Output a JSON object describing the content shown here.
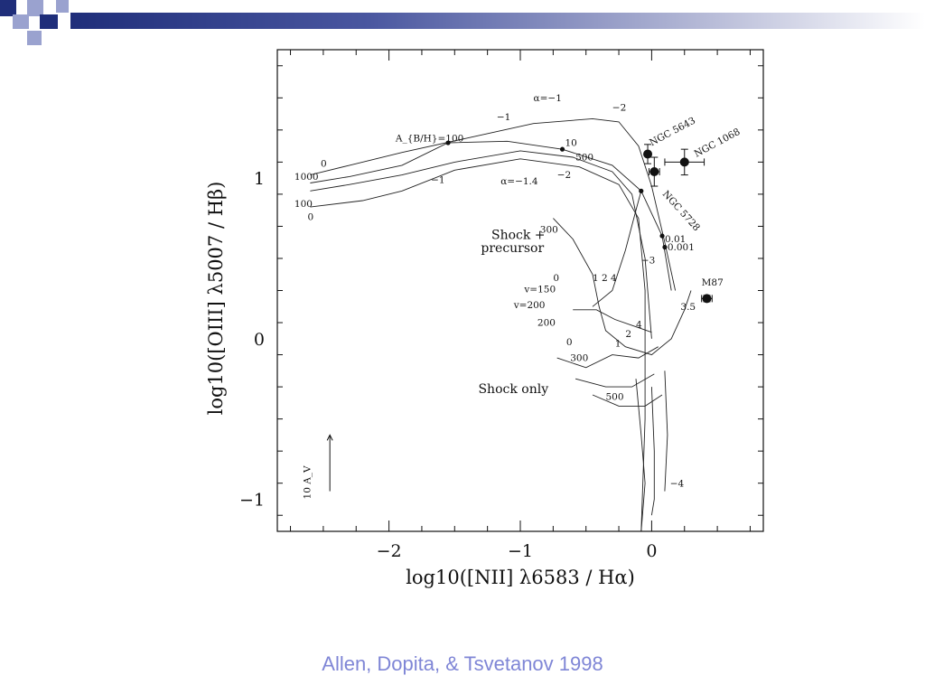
{
  "caption": "Allen, Dopita, & Tsvetanov 1998",
  "colors": {
    "banner_dark": "#1f2e7a",
    "banner_mid": "#4a57a0",
    "banner_light": "#9aa2cf",
    "caption": "#7f86d6",
    "ink": "#111111"
  },
  "chart_data": {
    "type": "scatter",
    "title": "",
    "xlabel": "log10([NII] λ6583 / Hα)",
    "ylabel": "log10([OIII] λ5007 / Hβ)",
    "xlim": [
      -2.85,
      0.85
    ],
    "ylim": [
      -1.2,
      1.8
    ],
    "x_ticks": [
      -2,
      -1,
      0
    ],
    "y_ticks": [
      -1,
      0,
      1
    ],
    "x_tick_labels": [
      "−2",
      "−1",
      "0"
    ],
    "y_tick_labels": [
      "−1",
      "0",
      "1"
    ],
    "grid": false,
    "observations": [
      {
        "name": "NGC 5643",
        "x": -0.03,
        "y": 1.15,
        "xerr": 0,
        "yerr": 0.06
      },
      {
        "name": "NGC 1068",
        "x": 0.25,
        "y": 1.1,
        "xerr": 0.15,
        "yerr": 0.08
      },
      {
        "name": "NGC 5728",
        "x": 0.02,
        "y": 1.04,
        "xerr": 0.04,
        "yerr": 0.09
      },
      {
        "name": "M87",
        "x": 0.42,
        "y": 0.25,
        "xerr": 0.04,
        "yerr": 0.02
      }
    ],
    "model_points": [
      {
        "x": -1.55,
        "y": 1.22
      },
      {
        "x": -0.68,
        "y": 1.18
      },
      {
        "x": -0.08,
        "y": 0.92
      },
      {
        "x": 0.08,
        "y": 0.64
      },
      {
        "x": 0.1,
        "y": 0.57
      }
    ],
    "model_grids": [
      {
        "label": "Shock + precursor",
        "lines": [
          [
            [
              -2.6,
              1.02
            ],
            [
              -2.3,
              1.08
            ],
            [
              -1.9,
              1.16
            ],
            [
              -1.4,
              1.25
            ],
            [
              -0.9,
              1.34
            ],
            [
              -0.45,
              1.37
            ],
            [
              -0.25,
              1.35
            ],
            [
              -0.1,
              1.2
            ],
            [
              0.0,
              0.95
            ],
            [
              0.1,
              0.6
            ],
            [
              0.18,
              0.3
            ]
          ],
          [
            [
              -2.6,
              0.97
            ],
            [
              -2.3,
              1.01
            ],
            [
              -1.9,
              1.08
            ],
            [
              -1.55,
              1.22
            ],
            [
              -1.1,
              1.23
            ],
            [
              -0.68,
              1.18
            ],
            [
              -0.3,
              1.08
            ],
            [
              -0.08,
              0.92
            ],
            [
              0.08,
              0.64
            ],
            [
              0.15,
              0.3
            ]
          ],
          [
            [
              -2.6,
              0.92
            ],
            [
              -2.3,
              0.96
            ],
            [
              -1.9,
              1.02
            ],
            [
              -1.5,
              1.1
            ],
            [
              -1.0,
              1.17
            ],
            [
              -0.6,
              1.13
            ],
            [
              -0.3,
              1.04
            ],
            [
              -0.15,
              0.9
            ],
            [
              -0.05,
              0.5
            ],
            [
              0.0,
              0.0
            ]
          ],
          [
            [
              -2.6,
              0.82
            ],
            [
              -2.2,
              0.86
            ],
            [
              -1.9,
              0.92
            ],
            [
              -1.5,
              1.05
            ],
            [
              -1.0,
              1.12
            ],
            [
              -0.55,
              1.07
            ],
            [
              -0.25,
              0.96
            ],
            [
              -0.1,
              0.75
            ],
            [
              -0.05,
              0.3
            ],
            [
              -0.05,
              -0.5
            ],
            [
              -0.08,
              -1.2
            ]
          ],
          [
            [
              -0.75,
              0.75
            ],
            [
              -0.6,
              0.62
            ],
            [
              -0.45,
              0.4
            ],
            [
              -0.4,
              0.2
            ],
            [
              -0.35,
              0.05
            ],
            [
              -0.2,
              -0.05
            ],
            [
              0.0,
              -0.1
            ],
            [
              0.15,
              0.0
            ],
            [
              0.25,
              0.18
            ],
            [
              0.3,
              0.3
            ]
          ],
          [
            [
              -0.45,
              0.2
            ],
            [
              -0.3,
              0.3
            ],
            [
              -0.2,
              0.55
            ],
            [
              -0.12,
              0.8
            ],
            [
              -0.08,
              0.92
            ]
          ],
          [
            [
              -0.6,
              0.18
            ],
            [
              -0.42,
              0.18
            ],
            [
              -0.28,
              0.12
            ],
            [
              -0.14,
              0.08
            ],
            [
              0.0,
              0.04
            ]
          ],
          [
            [
              -0.72,
              -0.12
            ],
            [
              -0.5,
              -0.18
            ],
            [
              -0.3,
              -0.1
            ],
            [
              -0.1,
              -0.12
            ],
            [
              0.05,
              -0.05
            ]
          ],
          [
            [
              -0.58,
              -0.25
            ],
            [
              -0.35,
              -0.3
            ],
            [
              -0.15,
              -0.3
            ],
            [
              0.02,
              -0.22
            ]
          ],
          [
            [
              -0.45,
              -0.35
            ],
            [
              -0.25,
              -0.42
            ],
            [
              -0.05,
              -0.42
            ],
            [
              0.08,
              -0.35
            ]
          ],
          [
            [
              -0.12,
              -0.25
            ],
            [
              -0.08,
              -0.6
            ],
            [
              -0.05,
              -0.9
            ],
            [
              -0.08,
              -1.2
            ]
          ],
          [
            [
              0.0,
              -0.3
            ],
            [
              0.02,
              -0.7
            ],
            [
              0.02,
              -1.0
            ],
            [
              0.0,
              -1.1
            ]
          ],
          [
            [
              0.1,
              -0.2
            ],
            [
              0.12,
              -0.6
            ],
            [
              0.1,
              -0.95
            ]
          ]
        ]
      }
    ],
    "annotations": [
      {
        "text": "α=−1",
        "x": -0.9,
        "y": 1.48
      },
      {
        "text": "α=−1.4",
        "x": -1.15,
        "y": 0.96
      },
      {
        "text": "A_{B/H}=100",
        "x": -1.95,
        "y": 1.23
      },
      {
        "text": "−1",
        "x": -1.18,
        "y": 1.36
      },
      {
        "text": "−2",
        "x": -0.3,
        "y": 1.42
      },
      {
        "text": "−1",
        "x": -1.68,
        "y": 0.97
      },
      {
        "text": "−2",
        "x": -0.72,
        "y": 1.0
      },
      {
        "text": "10",
        "x": -0.66,
        "y": 1.2
      },
      {
        "text": "500",
        "x": -0.58,
        "y": 1.11
      },
      {
        "text": "0",
        "x": -2.52,
        "y": 1.07
      },
      {
        "text": "1000",
        "x": -2.72,
        "y": 0.99
      },
      {
        "text": "100",
        "x": -2.72,
        "y": 0.82
      },
      {
        "text": "0",
        "x": -2.62,
        "y": 0.74
      },
      {
        "text": "Shock +",
        "x": -1.22,
        "y": 0.62
      },
      {
        "text": "precursor",
        "x": -1.3,
        "y": 0.54
      },
      {
        "text": "300",
        "x": -0.85,
        "y": 0.66
      },
      {
        "text": "−3",
        "x": -0.08,
        "y": 0.47
      },
      {
        "text": "0.01",
        "x": 0.1,
        "y": 0.6
      },
      {
        "text": "0.001",
        "x": 0.12,
        "y": 0.55
      },
      {
        "text": "0",
        "x": -0.75,
        "y": 0.36
      },
      {
        "text": "1 2 4",
        "x": -0.45,
        "y": 0.36
      },
      {
        "text": "v=150",
        "x": -0.97,
        "y": 0.29
      },
      {
        "text": "v=200",
        "x": -1.05,
        "y": 0.19
      },
      {
        "text": "200",
        "x": -0.87,
        "y": 0.08
      },
      {
        "text": "4",
        "x": -0.12,
        "y": 0.07
      },
      {
        "text": "2",
        "x": -0.2,
        "y": 0.01
      },
      {
        "text": "0",
        "x": -0.65,
        "y": -0.04
      },
      {
        "text": "1",
        "x": -0.28,
        "y": -0.05
      },
      {
        "text": "300",
        "x": -0.62,
        "y": -0.14
      },
      {
        "text": "3.5",
        "x": 0.22,
        "y": 0.18
      },
      {
        "text": "Shock only",
        "x": -1.32,
        "y": -0.34
      },
      {
        "text": "500",
        "x": -0.35,
        "y": -0.38
      },
      {
        "text": "−4",
        "x": 0.14,
        "y": -0.92
      },
      {
        "text": "NGC 5643",
        "x": 0.0,
        "y": 1.2
      },
      {
        "text": "NGC 1068",
        "x": 0.34,
        "y": 1.13
      },
      {
        "text": "NGC 5728",
        "x": 0.08,
        "y": 0.9
      },
      {
        "text": "M87",
        "x": 0.38,
        "y": 0.33
      },
      {
        "text": "10 A_V",
        "x": -2.6,
        "y": -1.0
      }
    ]
  }
}
